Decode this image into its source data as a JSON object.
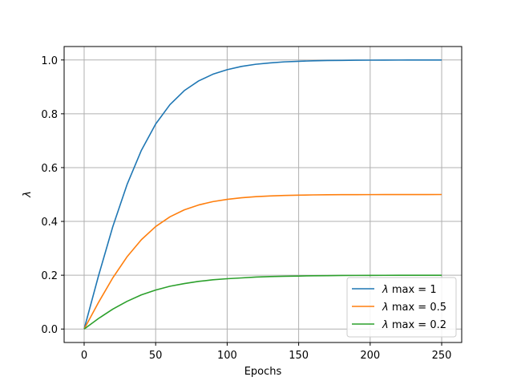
{
  "chart_data": {
    "type": "line",
    "title": "",
    "xlabel": "Epochs",
    "ylabel": "λ",
    "xlim": [
      -14,
      264
    ],
    "ylim": [
      -0.05,
      1.05
    ],
    "xticks": [
      0,
      50,
      100,
      150,
      200,
      250
    ],
    "yticks": [
      0.0,
      0.2,
      0.4,
      0.6,
      0.8,
      1.0
    ],
    "xtick_labels": [
      "0",
      "50",
      "100",
      "150",
      "200",
      "250"
    ],
    "ytick_labels": [
      "0.0",
      "0.2",
      "0.4",
      "0.6",
      "0.8",
      "1.0"
    ],
    "grid": true,
    "legend_position": "bottom-right",
    "x": [
      0,
      10,
      20,
      30,
      40,
      50,
      60,
      70,
      80,
      90,
      100,
      110,
      120,
      130,
      140,
      150,
      160,
      170,
      180,
      190,
      200,
      210,
      220,
      230,
      240,
      250
    ],
    "series": [
      {
        "name": "λ max = 1",
        "legend_label": "max = 1",
        "color": "#1f77b4",
        "values": [
          0.0,
          0.197,
          0.38,
          0.537,
          0.664,
          0.762,
          0.834,
          0.886,
          0.922,
          0.947,
          0.964,
          0.976,
          0.984,
          0.989,
          0.993,
          0.995,
          0.997,
          0.998,
          0.9985,
          0.999,
          0.9993,
          0.9995,
          0.9997,
          0.9998,
          0.9999,
          1.0
        ]
      },
      {
        "name": "λ max = 0.5",
        "legend_label": "max = 0.5",
        "color": "#ff7f0e",
        "values": [
          0.0,
          0.0985,
          0.19,
          0.2685,
          0.332,
          0.381,
          0.417,
          0.443,
          0.461,
          0.4735,
          0.482,
          0.488,
          0.492,
          0.4945,
          0.4965,
          0.4975,
          0.4985,
          0.499,
          0.4993,
          0.4995,
          0.4996,
          0.4997,
          0.4998,
          0.4999,
          0.4999,
          0.5
        ]
      },
      {
        "name": "λ max = 0.2",
        "legend_label": "max = 0.2",
        "color": "#2ca02c",
        "values": [
          0.0,
          0.039,
          0.074,
          0.103,
          0.127,
          0.145,
          0.159,
          0.169,
          0.177,
          0.183,
          0.187,
          0.19,
          0.193,
          0.195,
          0.196,
          0.197,
          0.198,
          0.1985,
          0.199,
          0.1993,
          0.1995,
          0.1997,
          0.1998,
          0.1999,
          0.1999,
          0.2
        ]
      }
    ]
  }
}
